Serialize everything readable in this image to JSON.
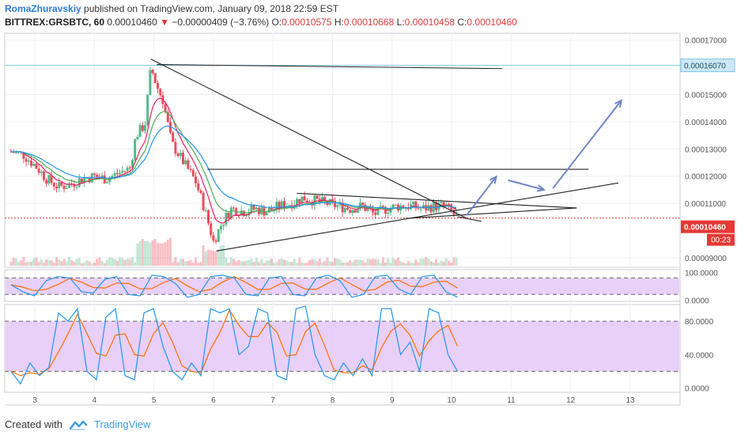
{
  "header": {
    "author": "RomaZhuravskiy",
    "published": "published on TradingView.com, January 09, 2018 22:59 EST",
    "symbol": "BITTREX:GRSBTC, 60",
    "last": "0.00010460",
    "change_arrow": "▼",
    "change": "−0.00000409 (−3.76%)",
    "open_label": "O:",
    "open": "0.00010575",
    "high_label": "H:",
    "high": "0.00010668",
    "low_label": "L:",
    "low": "0.00010458",
    "close_label": "C:",
    "close": "0.00010460"
  },
  "footer": {
    "created_with": "Created with",
    "brand": "TradingView"
  },
  "colors": {
    "up": "#53b987",
    "down": "#eb4d5c",
    "ema_fast": "#e91e63",
    "ema_mid": "#4caf50",
    "ema_slow": "#2196f3",
    "line": "#222222",
    "arrow": "#6f86c6",
    "osc_band": "#e4c8f8",
    "k_line": "#2196f3",
    "d_line": "#ff6d00",
    "price_badge": "#e53935",
    "hline_badge": "#cde8f6"
  },
  "chart_data": {
    "type": "candlestick",
    "x_ticks": [
      "3",
      "4",
      "5",
      "6",
      "7",
      "8",
      "9",
      "10",
      "11",
      "12",
      "13"
    ],
    "price_axis": {
      "ticks": [
        "0.00017000",
        "0.00015000",
        "0.00014000",
        "0.00013000",
        "0.00012000",
        "0.00011000",
        "0.00009000"
      ],
      "tick_values": [
        0.00017,
        0.00015,
        0.00014,
        0.00013,
        0.00012,
        0.00011,
        9e-05
      ],
      "range": [
        8.65e-05,
        0.0001725
      ],
      "current_price_label": "0.00010460",
      "current_price": 0.0001046,
      "countdown": "00:23",
      "hline_label": "0.00016070",
      "hline_value": 0.0001607
    },
    "osc1_axis": {
      "ticks": [
        "100.0000",
        "0.0000"
      ],
      "tick_values": [
        100,
        0
      ],
      "range": [
        -5,
        110
      ],
      "bands": [
        80,
        20
      ]
    },
    "osc2_axis": {
      "ticks": [
        "80.0000",
        "40.0000",
        "0.0000"
      ],
      "tick_values": [
        80,
        40,
        0
      ],
      "range": [
        -5,
        100
      ],
      "bands": [
        80,
        20
      ]
    },
    "candles_ohlc_anchor": {
      "note_days": [
        2.6,
        13.8
      ]
    },
    "price_path": [
      [
        2.6,
        0.000129
      ],
      [
        2.8,
        0.000128
      ],
      [
        3.0,
        0.000124
      ],
      [
        3.2,
        0.000119
      ],
      [
        3.4,
        0.000116
      ],
      [
        3.6,
        0.000117
      ],
      [
        3.8,
        0.000119
      ],
      [
        4.0,
        0.00012
      ],
      [
        4.2,
        0.000119
      ],
      [
        4.4,
        0.000121
      ],
      [
        4.6,
        0.000123
      ],
      [
        4.7,
        0.000135
      ],
      [
        4.85,
        0.000139
      ],
      [
        4.95,
        0.00016
      ],
      [
        5.05,
        0.000153
      ],
      [
        5.15,
        0.000148
      ],
      [
        5.3,
        0.000132
      ],
      [
        5.5,
        0.000125
      ],
      [
        5.7,
        0.000118
      ],
      [
        5.85,
        0.000108
      ],
      [
        6.0,
        9.6e-05
      ],
      [
        6.15,
        0.000103
      ],
      [
        6.3,
        0.000108
      ],
      [
        6.5,
        0.000107
      ],
      [
        6.7,
        0.000108
      ],
      [
        6.9,
        0.000107
      ],
      [
        7.1,
        0.000109
      ],
      [
        7.3,
        0.00011
      ],
      [
        7.5,
        0.000112
      ],
      [
        7.7,
        0.000111
      ],
      [
        7.9,
        0.00011
      ],
      [
        8.1,
        0.000109
      ],
      [
        8.3,
        0.000108
      ],
      [
        8.5,
        0.000109
      ],
      [
        8.7,
        0.000106
      ],
      [
        8.9,
        0.000108
      ],
      [
        9.1,
        0.000109
      ],
      [
        9.3,
        0.000109
      ],
      [
        9.5,
        0.000108
      ],
      [
        9.7,
        0.000109
      ],
      [
        9.9,
        0.000109
      ],
      [
        10.1,
        0.0001046
      ]
    ],
    "drawings": {
      "lines": [
        [
          [
            4.95,
            0.000163
          ],
          [
            10.25,
            0.0001045
          ]
        ],
        [
          [
            5.05,
            0.000161
          ],
          [
            10.85,
            0.0001595
          ]
        ],
        [
          [
            5.9,
            0.0001225
          ],
          [
            12.3,
            0.0001225
          ]
        ],
        [
          [
            7.4,
            0.0001137
          ],
          [
            12.1,
            0.0001083
          ]
        ],
        [
          [
            6.05,
            9.25e-05
          ],
          [
            12.8,
            0.0001175
          ]
        ],
        [
          [
            9.25,
            0.0001045
          ],
          [
            12.1,
            0.0001083
          ]
        ],
        [
          [
            10.1,
            0.0001051
          ],
          [
            10.5,
            0.0001034
          ]
        ]
      ],
      "arrows": [
        [
          [
            10.25,
            0.0001056
          ],
          [
            10.75,
            0.0001198
          ]
        ],
        [
          [
            10.95,
            0.0001185
          ],
          [
            11.55,
            0.000115
          ]
        ],
        [
          [
            11.7,
            0.0001155
          ],
          [
            12.85,
            0.0001478
          ]
        ]
      ]
    },
    "osc1_k": [
      55,
      30,
      15,
      70,
      85,
      80,
      30,
      25,
      75,
      85,
      20,
      15,
      90,
      85,
      60,
      10,
      20,
      85,
      90,
      80,
      20,
      15,
      80,
      85,
      20,
      15,
      80,
      90,
      70,
      10,
      20,
      85,
      90,
      40,
      20,
      85,
      90,
      30,
      10
    ],
    "osc2_k": [
      20,
      5,
      30,
      15,
      25,
      90,
      80,
      95,
      20,
      10,
      85,
      95,
      15,
      10,
      90,
      95,
      50,
      20,
      10,
      30,
      15,
      95,
      90,
      95,
      40,
      50,
      95,
      90,
      15,
      10,
      95,
      98,
      40,
      15,
      10,
      30,
      15,
      35,
      15,
      95,
      95,
      40,
      55,
      20,
      95,
      90,
      40,
      20
    ]
  }
}
